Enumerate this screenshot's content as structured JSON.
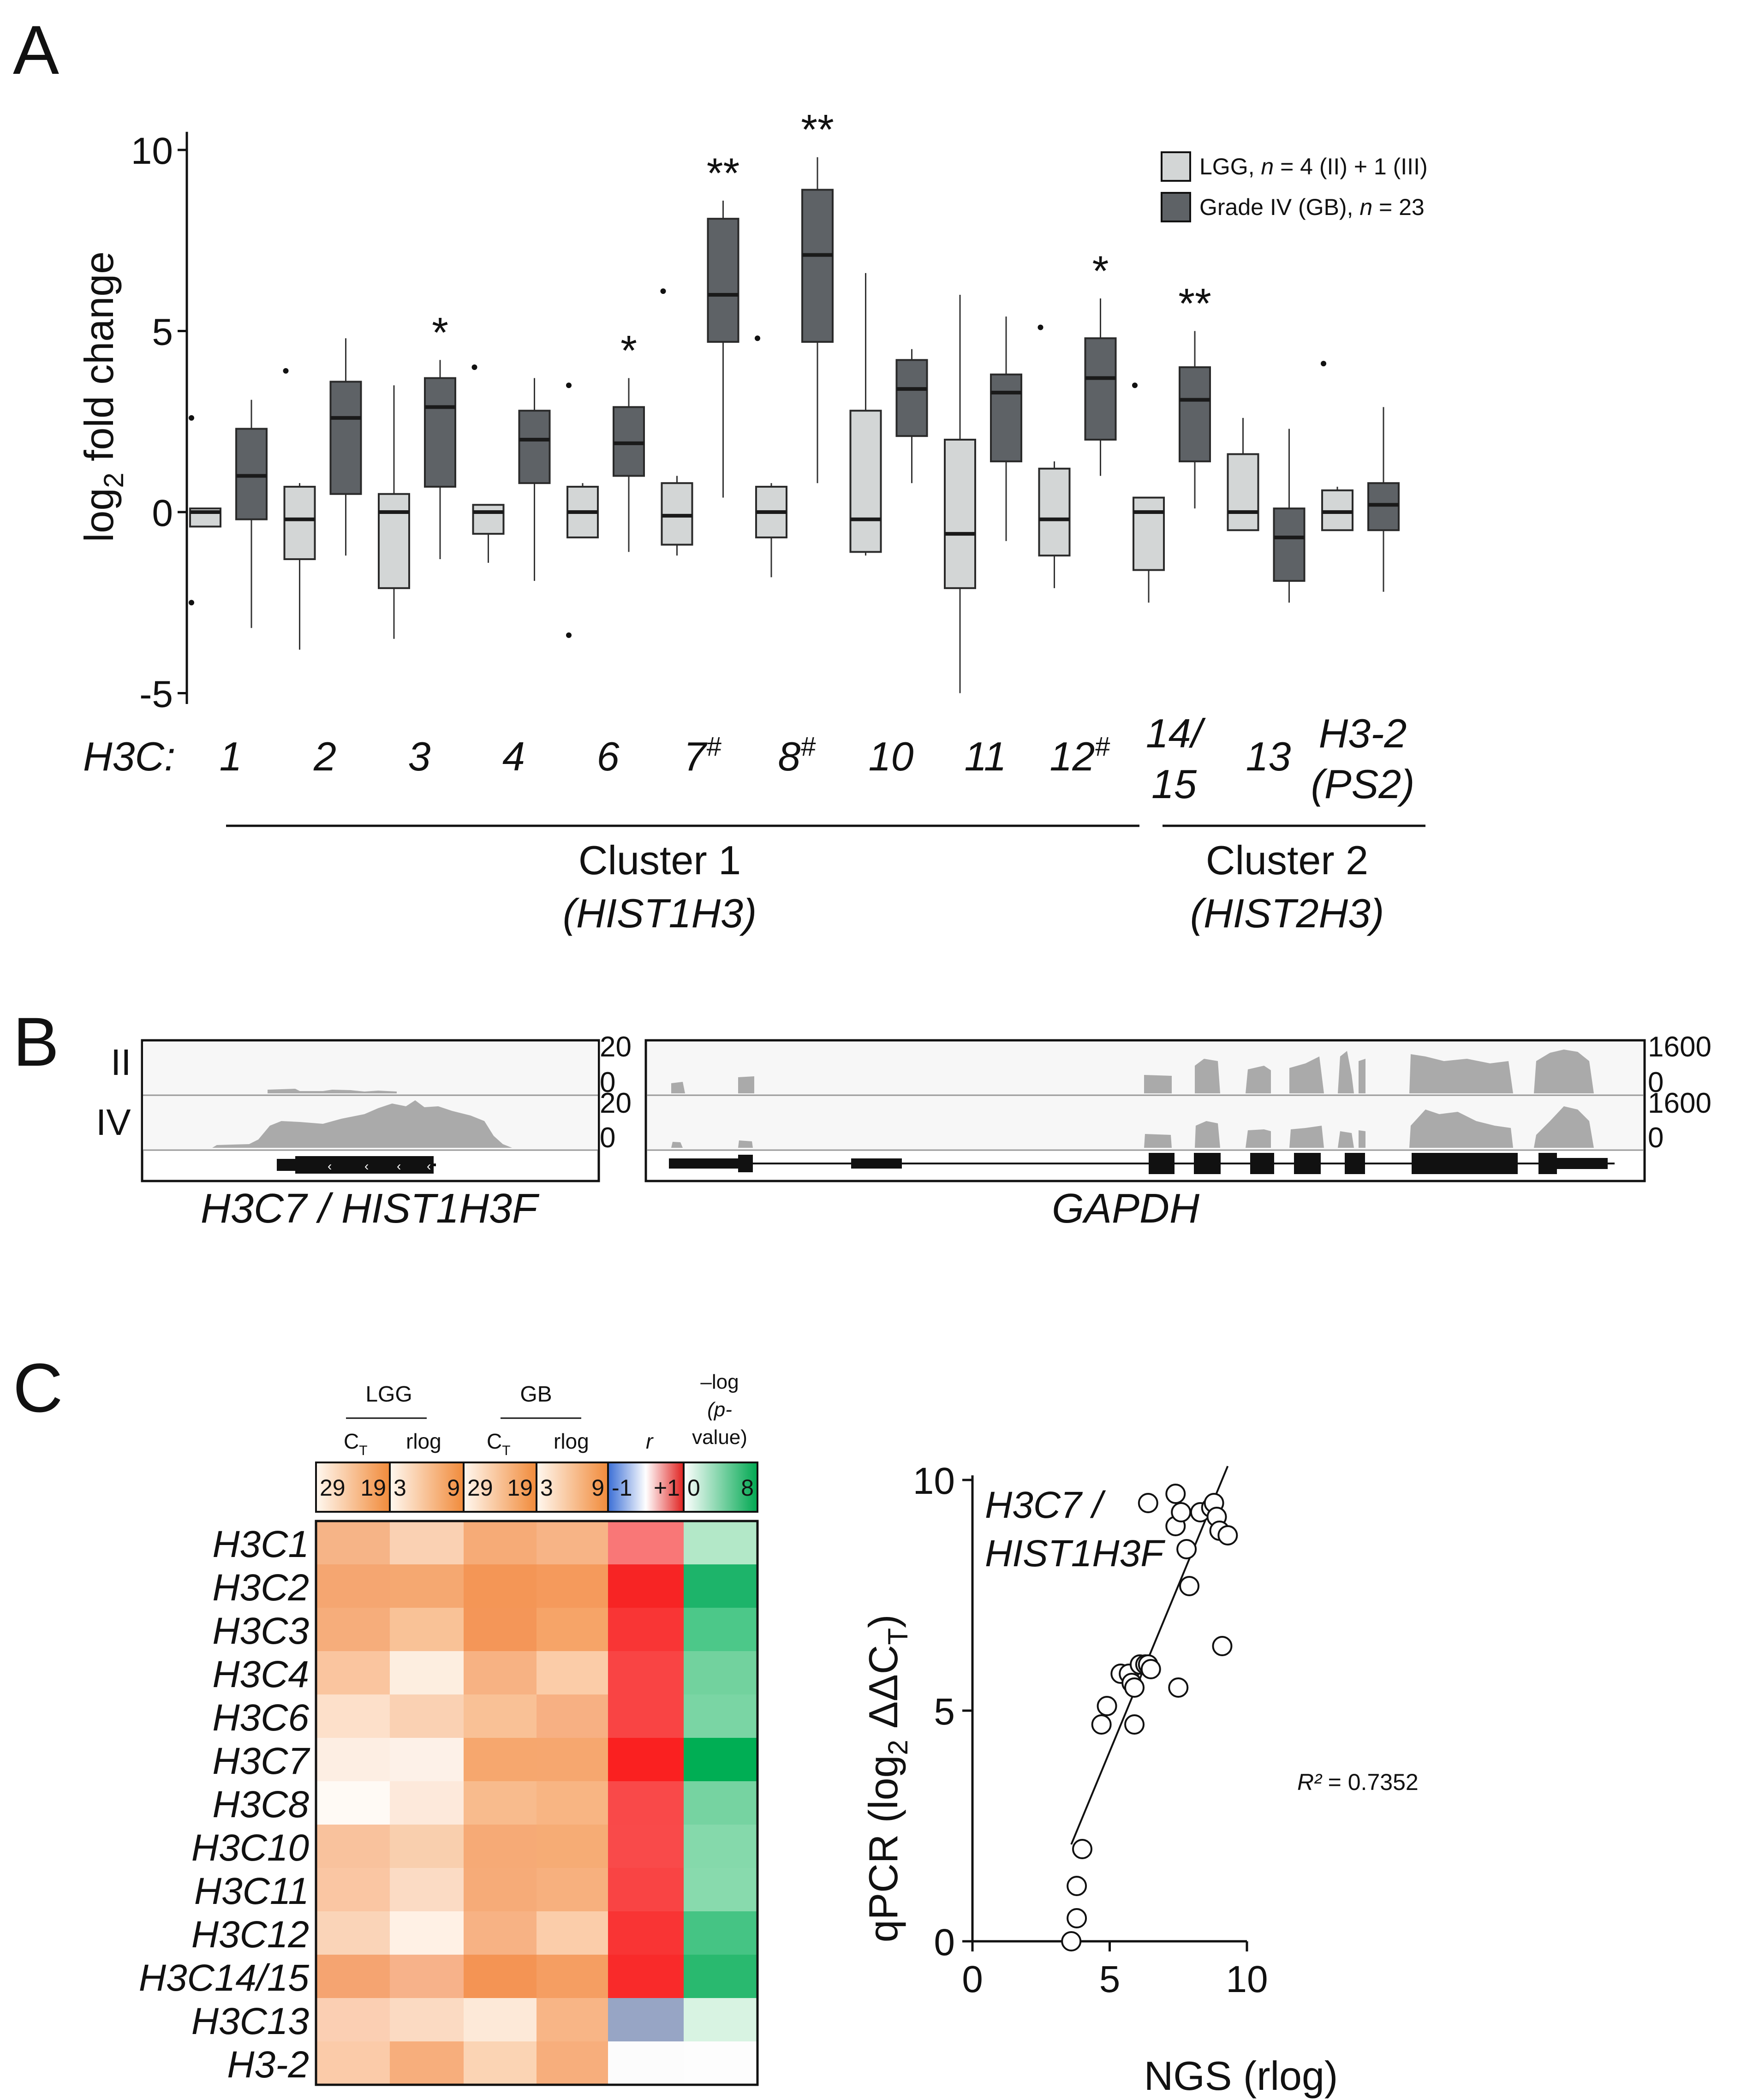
{
  "panels": {
    "a": "A",
    "b": "B",
    "c": "C"
  },
  "panel_a": {
    "ylabel_main": "log",
    "ylabel_sub": "2",
    "ylabel_rest": " fold change",
    "row_prefix": "H3C:",
    "gene_labels": [
      {
        "l1": "1",
        "sup": ""
      },
      {
        "l1": "2",
        "sup": ""
      },
      {
        "l1": "3",
        "sup": ""
      },
      {
        "l1": "4",
        "sup": ""
      },
      {
        "l1": "6",
        "sup": ""
      },
      {
        "l1": "7",
        "sup": "#"
      },
      {
        "l1": "8",
        "sup": "#"
      },
      {
        "l1": "10",
        "sup": ""
      },
      {
        "l1": "11",
        "sup": ""
      },
      {
        "l1": "12",
        "sup": "#"
      },
      {
        "l1": "14/",
        "l2": "15",
        "sup": ""
      },
      {
        "l1": "13",
        "sup": ""
      },
      {
        "l1": "H3-2",
        "l2": "(PS2)",
        "sup": ""
      }
    ],
    "clusters": [
      {
        "name": "Cluster 1",
        "sub": "(HIST1H3)"
      },
      {
        "name": "Cluster 2",
        "sub": "(HIST2H3)"
      }
    ],
    "legend": [
      {
        "label": "LGG, ",
        "n": "n",
        "rest": " = 4 (II) + 1 (III)",
        "color": "#d3d6d6"
      },
      {
        "label": "Grade IV (GB), ",
        "n": "n",
        "rest": " = 23",
        "color": "#5e6266"
      }
    ],
    "significance": [
      "",
      "",
      "*",
      "",
      "*",
      "**",
      "**",
      "",
      "",
      "*",
      "**",
      "",
      ""
    ]
  },
  "chart_data": [
    {
      "type": "box",
      "title": "",
      "xlabel": "H3C:",
      "ylabel": "log2 fold change",
      "ylim": [
        -5,
        10
      ],
      "yticks": [
        -5,
        0,
        5,
        10
      ],
      "categories": [
        "1",
        "2",
        "3",
        "4",
        "6",
        "7#",
        "8#",
        "10",
        "11",
        "12#",
        "14/15",
        "13",
        "H3-2 (PS2)"
      ],
      "series": [
        {
          "name": "LGG",
          "color": "#d3d6d6",
          "boxes": [
            {
              "min": -0.4,
              "q1": -0.4,
              "median": 0.0,
              "q3": 0.1,
              "max": 0.1,
              "outliers": [
                2.6,
                -2.5
              ]
            },
            {
              "min": -3.8,
              "q1": -1.3,
              "median": -0.2,
              "q3": 0.7,
              "max": 0.8,
              "outliers": [
                3.9
              ]
            },
            {
              "min": -3.5,
              "q1": -2.1,
              "median": 0.0,
              "q3": 0.5,
              "max": 3.5,
              "outliers": []
            },
            {
              "min": -1.4,
              "q1": -0.6,
              "median": 0.0,
              "q3": 0.2,
              "max": 0.2,
              "outliers": [
                4.0
              ]
            },
            {
              "min": -0.7,
              "q1": -0.7,
              "median": 0.0,
              "q3": 0.7,
              "max": 0.8,
              "outliers": [
                3.5,
                -3.4
              ]
            },
            {
              "min": -1.2,
              "q1": -0.9,
              "median": -0.1,
              "q3": 0.8,
              "max": 1.0,
              "outliers": [
                6.1
              ]
            },
            {
              "min": -1.8,
              "q1": -0.7,
              "median": 0.0,
              "q3": 0.7,
              "max": 0.8,
              "outliers": [
                4.8
              ]
            },
            {
              "min": -1.2,
              "q1": -1.1,
              "median": -0.2,
              "q3": 2.8,
              "max": 6.6,
              "outliers": []
            },
            {
              "min": -5.0,
              "q1": -2.1,
              "median": -0.6,
              "q3": 2.0,
              "max": 6.0,
              "outliers": []
            },
            {
              "min": -2.1,
              "q1": -1.2,
              "median": -0.2,
              "q3": 1.2,
              "max": 1.4,
              "outliers": [
                5.1
              ]
            },
            {
              "min": -2.5,
              "q1": -1.6,
              "median": 0.0,
              "q3": 0.4,
              "max": 0.4,
              "outliers": [
                3.5
              ]
            },
            {
              "min": -0.5,
              "q1": -0.5,
              "median": 0.0,
              "q3": 1.6,
              "max": 2.6,
              "outliers": []
            },
            {
              "min": -0.5,
              "q1": -0.5,
              "median": 0.0,
              "q3": 0.6,
              "max": 0.7,
              "outliers": [
                4.1
              ]
            }
          ]
        },
        {
          "name": "Grade IV (GB)",
          "color": "#5e6266",
          "boxes": [
            {
              "min": -3.2,
              "q1": -0.2,
              "median": 1.0,
              "q3": 2.3,
              "max": 3.1,
              "outliers": []
            },
            {
              "min": -1.2,
              "q1": 0.5,
              "median": 2.6,
              "q3": 3.6,
              "max": 4.8,
              "outliers": []
            },
            {
              "min": -1.3,
              "q1": 0.7,
              "median": 2.9,
              "q3": 3.7,
              "max": 4.2,
              "outliers": []
            },
            {
              "min": -1.9,
              "q1": 0.8,
              "median": 2.0,
              "q3": 2.8,
              "max": 3.7,
              "outliers": []
            },
            {
              "min": -1.1,
              "q1": 1.0,
              "median": 1.9,
              "q3": 2.9,
              "max": 3.7,
              "outliers": []
            },
            {
              "min": 0.4,
              "q1": 4.7,
              "median": 6.0,
              "q3": 8.1,
              "max": 8.6,
              "outliers": []
            },
            {
              "min": 0.8,
              "q1": 4.7,
              "median": 7.1,
              "q3": 8.9,
              "max": 9.8,
              "outliers": []
            },
            {
              "min": 0.8,
              "q1": 2.1,
              "median": 3.4,
              "q3": 4.2,
              "max": 4.5,
              "outliers": []
            },
            {
              "min": -0.8,
              "q1": 1.4,
              "median": 3.3,
              "q3": 3.8,
              "max": 5.4,
              "outliers": []
            },
            {
              "min": 1.0,
              "q1": 2.0,
              "median": 3.7,
              "q3": 4.8,
              "max": 5.9,
              "outliers": []
            },
            {
              "min": 0.1,
              "q1": 1.4,
              "median": 3.1,
              "q3": 4.0,
              "max": 5.0,
              "outliers": []
            },
            {
              "min": -2.5,
              "q1": -1.9,
              "median": -0.7,
              "q3": 0.1,
              "max": 2.3,
              "outliers": []
            },
            {
              "min": -2.2,
              "q1": -0.5,
              "median": 0.2,
              "q3": 0.8,
              "max": 2.9,
              "outliers": []
            }
          ]
        }
      ]
    },
    {
      "type": "heatmap",
      "column_groups": [
        {
          "name": "LGG",
          "cols": [
            "C",
            "rlog"
          ],
          "ct_sub": "T"
        },
        {
          "name": "GB",
          "cols": [
            "C",
            "rlog"
          ],
          "ct_sub": "T"
        },
        {
          "name": "",
          "cols": [
            "r"
          ]
        },
        {
          "name": "–log (p-value)",
          "cols": [
            ""
          ]
        }
      ],
      "scales": [
        {
          "min": "29",
          "max": "19"
        },
        {
          "min": "3",
          "max": "9"
        },
        {
          "min": "29",
          "max": "19"
        },
        {
          "min": "3",
          "max": "9"
        },
        {
          "min": "-1",
          "max": "+1"
        },
        {
          "min": "0",
          "max": "8"
        }
      ],
      "rows": [
        "H3C1",
        "H3C2",
        "H3C3",
        "H3C4",
        "H3C6",
        "H3C7",
        "H3C8",
        "H3C10",
        "H3C11",
        "H3C12",
        "H3C14/15",
        "H3C13",
        "H3-2"
      ],
      "cells": [
        [
          "#f6b487",
          "#fad1b3",
          "#f6ab77",
          "#f7b486",
          "#f97777",
          "#b3e8c8"
        ],
        [
          "#f5a671",
          "#f5a871",
          "#f49656",
          "#f59a5c",
          "#f72424",
          "#1db46a"
        ],
        [
          "#f6ad7b",
          "#f9c297",
          "#f49658",
          "#f6a468",
          "#f93535",
          "#4cc889"
        ],
        [
          "#fac59f",
          "#fdeee0",
          "#f7b283",
          "#fbcca8",
          "#f94444",
          "#72d29e"
        ],
        [
          "#fde0ca",
          "#fad1b3",
          "#f9c196",
          "#f7b083",
          "#f94444",
          "#7ad5a4"
        ],
        [
          "#fdeee3",
          "#fdf1e8",
          "#f6a76e",
          "#f6a76f",
          "#fa2020",
          "#00ae54"
        ],
        [
          "#fffaf5",
          "#fde9db",
          "#f8bb8d",
          "#f8b583",
          "#f94949",
          "#76d3a1"
        ],
        [
          "#f9c29d",
          "#f9cfae",
          "#f6aa76",
          "#f6ac75",
          "#f94a4a",
          "#85d9ab"
        ],
        [
          "#fac6a3",
          "#fbdbc4",
          "#f6ab78",
          "#f7b07e",
          "#f94444",
          "#88daad"
        ],
        [
          "#fad4b8",
          "#fff1e5",
          "#f7b284",
          "#fbcdaa",
          "#f93434",
          "#45c484"
        ],
        [
          "#f5a471",
          "#f7b28a",
          "#f49454",
          "#f59e62",
          "#f92a2a",
          "#29b96f"
        ],
        [
          "#fbcfb3",
          "#fbdac2",
          "#fde9d8",
          "#f8b586",
          "#97a5c5",
          "#d8f3e2"
        ],
        [
          "#fbcba9",
          "#f7ae7c",
          "#fbd4b4",
          "#f7ae7c",
          "#fcfcfc",
          "#fdfdfd"
        ]
      ]
    },
    {
      "type": "scatter",
      "title": "H3C7 / HIST1H3F",
      "xlabel": "NGS (rlog)",
      "ylabel": "qPCR (log2 ΔΔCT)",
      "xlim": [
        0,
        10
      ],
      "ylim": [
        0,
        10
      ],
      "xticks": [
        0,
        5,
        10
      ],
      "yticks": [
        0,
        5,
        10
      ],
      "r2_label": "R² = 0.7352",
      "fit": {
        "x": [
          3.6,
          9.3
        ],
        "y": [
          2.1,
          10.3
        ]
      },
      "points": [
        [
          3.6,
          0.0
        ],
        [
          3.8,
          0.5
        ],
        [
          3.8,
          1.2
        ],
        [
          4.0,
          2.0
        ],
        [
          4.7,
          4.7
        ],
        [
          4.9,
          5.1
        ],
        [
          5.4,
          5.8
        ],
        [
          5.7,
          5.8
        ],
        [
          5.8,
          5.6
        ],
        [
          5.9,
          5.5
        ],
        [
          5.9,
          4.7
        ],
        [
          6.1,
          6.0
        ],
        [
          6.3,
          6.0
        ],
        [
          6.4,
          6.0
        ],
        [
          6.5,
          5.9
        ],
        [
          6.4,
          9.5
        ],
        [
          7.4,
          9.7
        ],
        [
          7.4,
          9.0
        ],
        [
          7.6,
          9.3
        ],
        [
          7.5,
          5.5
        ],
        [
          7.8,
          8.5
        ],
        [
          7.9,
          7.7
        ],
        [
          8.3,
          9.3
        ],
        [
          8.7,
          9.4
        ],
        [
          8.8,
          9.5
        ],
        [
          8.9,
          9.2
        ],
        [
          9.1,
          6.4
        ],
        [
          9.0,
          8.9
        ],
        [
          9.3,
          8.8
        ]
      ]
    }
  ],
  "panel_b": {
    "track_labels": [
      "II",
      "IV"
    ],
    "left_scale": {
      "top": "20",
      "bottom": "0"
    },
    "right_scale": {
      "top": "1600",
      "bottom": "0"
    },
    "left_gene": "H3C7 / HIST1H3F",
    "right_gene": "GAPDH"
  },
  "panel_c": {
    "scatter_title_l1": "H3C7 /",
    "scatter_title_l2": "HIST1H3F",
    "xlabel": "NGS (rlog)",
    "ylabel_main": "qPCR (log",
    "ylabel_sub": "2",
    "ylabel_delta": " ΔΔC",
    "ylabel_sub2": "T",
    "ylabel_end": ")",
    "r2": "R²",
    "r2_rest": " = 0.7352",
    "col_header_lgg": "LGG",
    "col_header_gb": "GB",
    "col_header_p_l1": "–log",
    "col_header_p_l2": "(p-",
    "col_header_p_l3": "value)",
    "col_ct": "C",
    "col_ct_sub": "T",
    "col_rlog": "rlog",
    "col_r": "r"
  }
}
